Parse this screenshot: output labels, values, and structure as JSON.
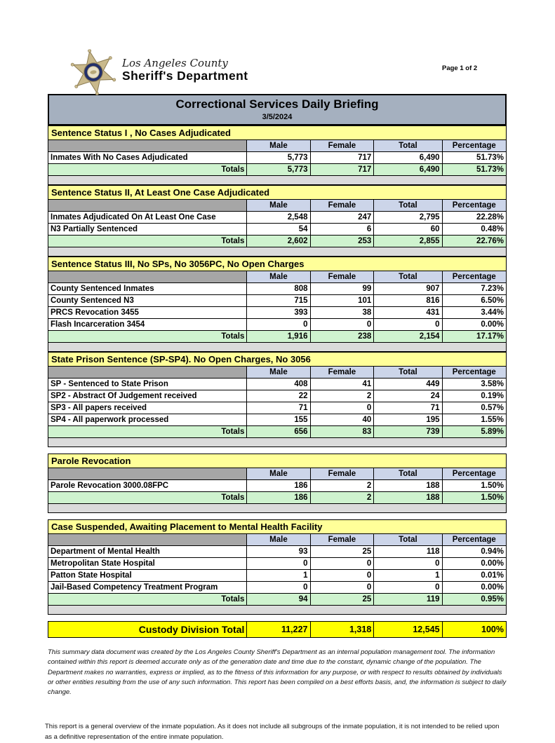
{
  "page_label": "Page 1 of 2",
  "header": {
    "agency_line1": "Los Angeles County",
    "agency_line2": "Sheriff's Department"
  },
  "title": {
    "text": "Correctional Services Daily Briefing",
    "date": "3/5/2024"
  },
  "table": {
    "columns": [
      "Male",
      "Female",
      "Total",
      "Percentage"
    ],
    "totals_label": "Totals",
    "sections": [
      {
        "title": "Sentence Status I , No Cases Adjudicated",
        "gap_before": false,
        "rows": [
          {
            "label": "Inmates With No Cases Adjudicated",
            "values": [
              "5,773",
              "717",
              "6,490",
              "51.73%"
            ]
          }
        ],
        "totals": [
          "5,773",
          "717",
          "6,490",
          "51.73%"
        ]
      },
      {
        "title": "Sentence Status II, At Least One Case Adjudicated",
        "gap_before": false,
        "rows": [
          {
            "label": "Inmates Adjudicated On At Least One Case",
            "values": [
              "2,548",
              "247",
              "2,795",
              "22.28%"
            ]
          },
          {
            "label": "N3 Partially Sentenced",
            "values": [
              "54",
              "6",
              "60",
              "0.48%"
            ]
          }
        ],
        "totals": [
          "2,602",
          "253",
          "2,855",
          "22.76%"
        ]
      },
      {
        "title": "Sentence Status III, No SPs, No 3056PC, No Open Charges",
        "gap_before": false,
        "rows": [
          {
            "label": "County Sentenced Inmates",
            "values": [
              "808",
              "99",
              "907",
              "7.23%"
            ]
          },
          {
            "label": "County Sentenced N3",
            "values": [
              "715",
              "101",
              "816",
              "6.50%"
            ]
          },
          {
            "label": "PRCS Revocation 3455",
            "values": [
              "393",
              "38",
              "431",
              "3.44%"
            ]
          },
          {
            "label": "Flash Incarceration 3454",
            "values": [
              "0",
              "0",
              "0",
              "0.00%"
            ]
          }
        ],
        "totals": [
          "1,916",
          "238",
          "2,154",
          "17.17%"
        ]
      },
      {
        "title": "State Prison Sentence (SP-SP4). No Open Charges, No 3056",
        "gap_before": false,
        "rows": [
          {
            "label": "SP - Sentenced to State Prison",
            "values": [
              "408",
              "41",
              "449",
              "3.58%"
            ]
          },
          {
            "label": "SP2 - Abstract Of Judgement received",
            "values": [
              "22",
              "2",
              "24",
              "0.19%"
            ]
          },
          {
            "label": "SP3 - All papers received",
            "values": [
              "71",
              "0",
              "71",
              "0.57%"
            ]
          },
          {
            "label": "SP4 - All paperwork processed",
            "values": [
              "155",
              "40",
              "195",
              "1.55%"
            ]
          }
        ],
        "totals": [
          "656",
          "83",
          "739",
          "5.89%"
        ]
      },
      {
        "title": "Parole Revocation",
        "gap_before": true,
        "rows": [
          {
            "label": "Parole Revocation 3000.08FPC",
            "values": [
              "186",
              "2",
              "188",
              "1.50%"
            ]
          }
        ],
        "totals": [
          "186",
          "2",
          "188",
          "1.50%"
        ]
      },
      {
        "title": "Case Suspended, Awaiting Placement to Mental Health Facility",
        "gap_before": true,
        "rows": [
          {
            "label": "Department of Mental Health",
            "values": [
              "93",
              "25",
              "118",
              "0.94%"
            ]
          },
          {
            "label": "Metropolitan State Hospital",
            "values": [
              "0",
              "0",
              "0",
              "0.00%"
            ]
          },
          {
            "label": "Patton State Hospital",
            "values": [
              "1",
              "0",
              "1",
              "0.01%"
            ]
          },
          {
            "label": "Jail-Based Competency Treatment Program",
            "values": [
              "0",
              "0",
              "0",
              "0.00%"
            ]
          }
        ],
        "totals": [
          "94",
          "25",
          "119",
          "0.95%"
        ]
      }
    ],
    "grand_total": {
      "label": "Custody Division Total",
      "values": [
        "11,227",
        "1,318",
        "12,545",
        "100%"
      ]
    }
  },
  "disclaimer": "This summary data document was created by the Los Angeles County Sheriff's Department as an internal population management tool.  The information contained within this report is deemed accurate only as of the generation date and time due to the constant, dynamic change of the population.  The Department makes no warranties, express or implied, as to the fitness of this information for any purpose, or with respect to results obtained by individuals or other entities resulting from the use of any such information.  This report has been compiled on a best efforts basis, and, the information is subject to daily change.",
  "footnote": "This report is a general overview of the inmate population.  As it does not include all subgroups of the inmate population, it is not intended to be relied upon as a definitive representation of the entire inmate population.",
  "colors": {
    "title_bar": "#A5B0BF",
    "section_header": "#FFFF99",
    "column_header": "#CCD5E9",
    "header_label_cell": "#A6A6A6",
    "totals_row": "#CFF3CF",
    "spacer": "#DBDBDB",
    "grand_total": "#FFFF00",
    "badge_gold": "#C9B98C",
    "badge_navy": "#23306B"
  }
}
